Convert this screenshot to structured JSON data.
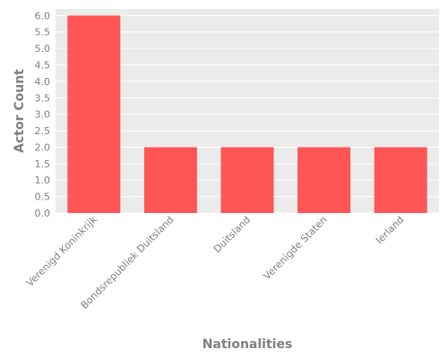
{
  "chart_data": {
    "type": "bar",
    "categories": [
      "Verenigd Koninkrijk",
      "Bondsrepubliek Duitsland",
      "Duitsland",
      "Verenigde Staten",
      "Ierland"
    ],
    "values": [
      6,
      2,
      2,
      2,
      2
    ],
    "xlabel": "Nationalities",
    "ylabel": "Actor Count",
    "ylim": [
      0,
      6.2
    ],
    "yticks": [
      "0.0",
      "0.5",
      "1.0",
      "1.5",
      "2.0",
      "2.5",
      "3.0",
      "3.5",
      "4.0",
      "4.5",
      "5.0",
      "5.5",
      "6.0"
    ],
    "grid": true,
    "colors": {
      "bar": "#ff5555",
      "panel": "#ebebeb",
      "grid": "#ffffff"
    }
  }
}
